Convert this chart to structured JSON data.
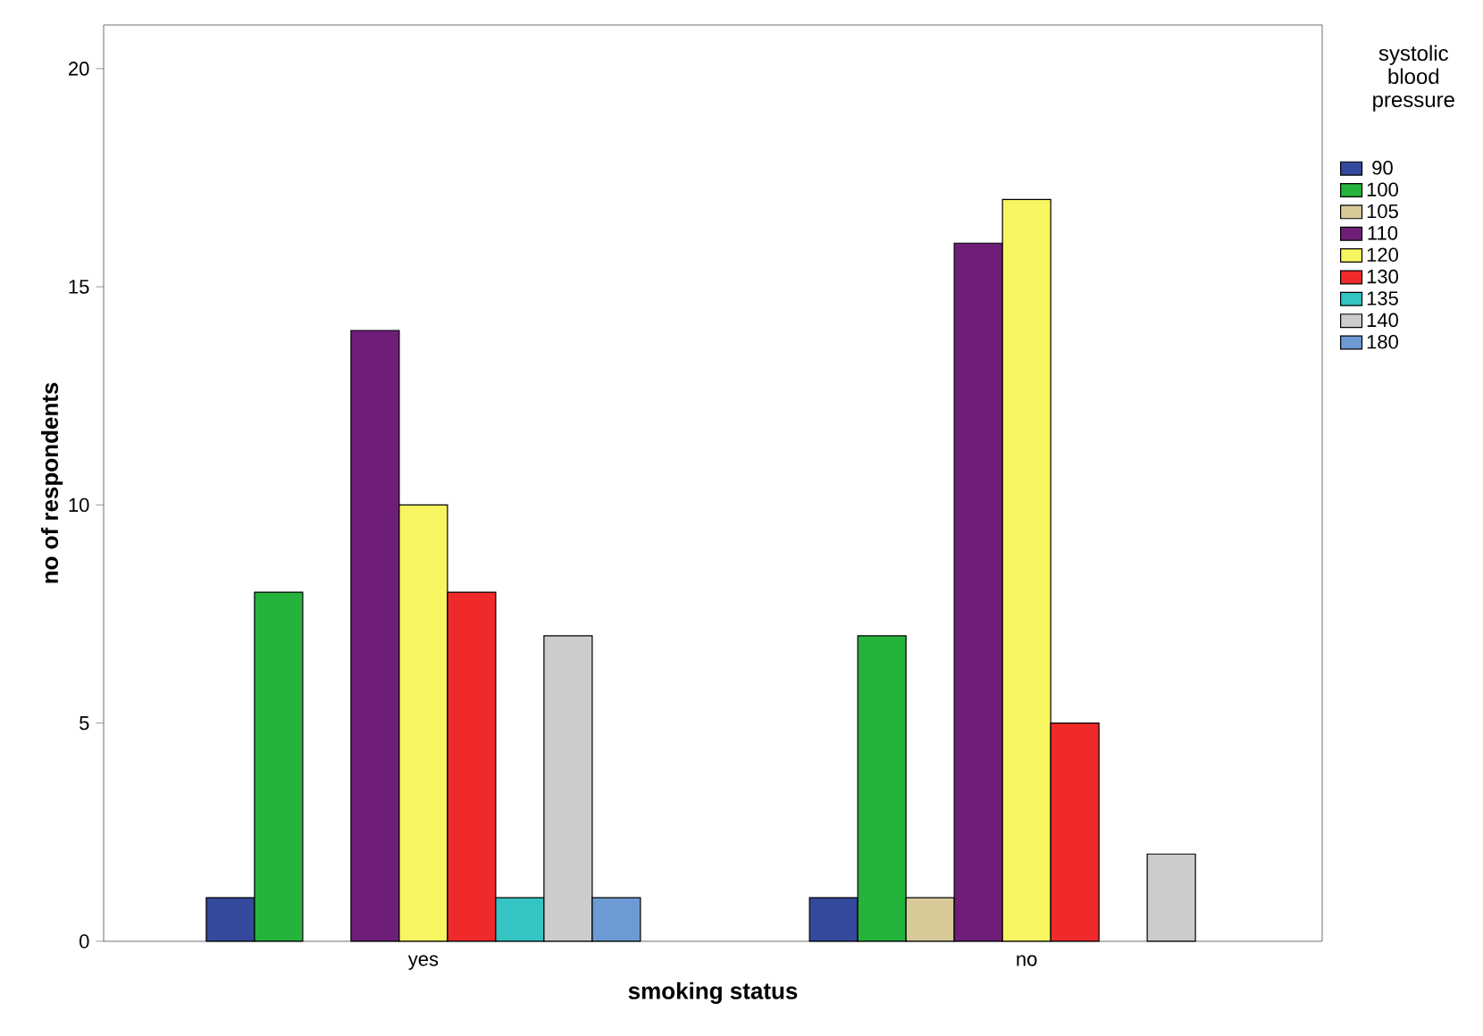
{
  "chart_data": {
    "type": "bar",
    "xlabel": "smoking status",
    "ylabel": "no of respondents",
    "legend_title": "systolic blood pressure",
    "categories": [
      "yes",
      "no"
    ],
    "series": [
      {
        "name": "90",
        "color": "#34489c",
        "values": [
          1,
          1
        ]
      },
      {
        "name": "100",
        "color": "#24b43c",
        "values": [
          8,
          7
        ]
      },
      {
        "name": "105",
        "color": "#d8ca98",
        "values": [
          null,
          1
        ]
      },
      {
        "name": "110",
        "color": "#6e1e78",
        "values": [
          14,
          16
        ]
      },
      {
        "name": "120",
        "color": "#f8f660",
        "values": [
          10,
          17
        ]
      },
      {
        "name": "130",
        "color": "#f02a2a",
        "values": [
          8,
          5
        ]
      },
      {
        "name": "135",
        "color": "#34c4c4",
        "values": [
          1,
          null
        ]
      },
      {
        "name": "140",
        "color": "#cccccc",
        "values": [
          7,
          2
        ]
      },
      {
        "name": "180",
        "color": "#6c9ad4",
        "values": [
          1,
          null
        ]
      }
    ],
    "ylim": [
      0,
      21
    ],
    "yticks": [
      0,
      5,
      10,
      15,
      20
    ],
    "legend": "right",
    "grid": false
  }
}
